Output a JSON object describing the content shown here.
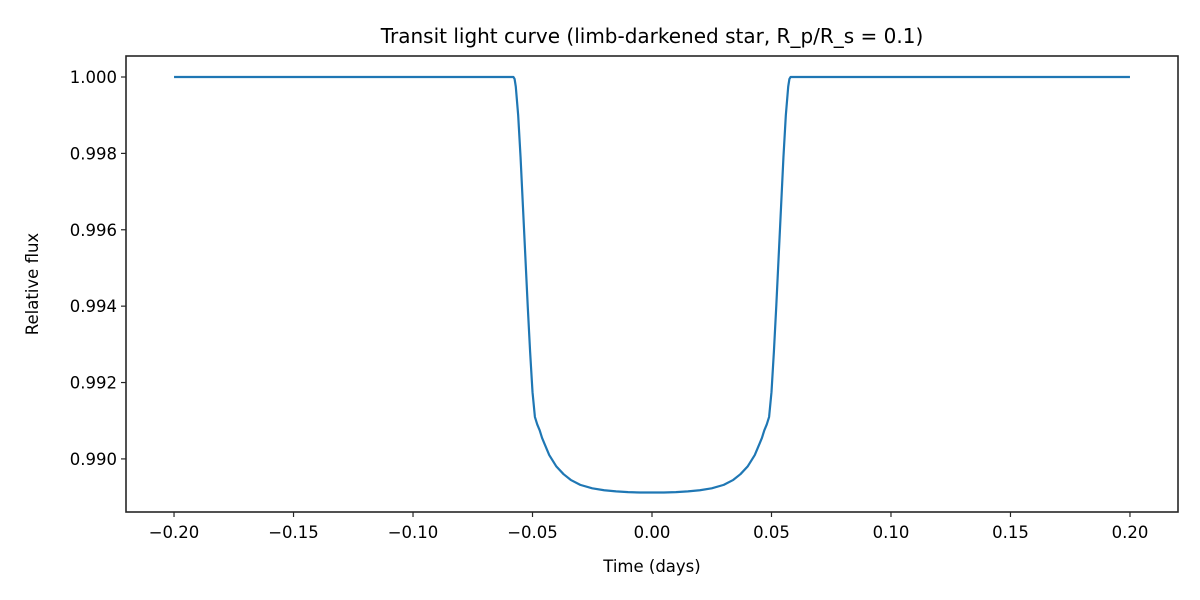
{
  "figure": {
    "background": "#ffffff",
    "line_color": "#1f77b4",
    "spine_color": "#262626"
  },
  "chart_data": {
    "type": "line",
    "title": "Transit light curve (limb-darkened star, R_p/R_s = 0.1)",
    "xlabel": "Time (days)",
    "ylabel": "Relative flux",
    "xlim": [
      -0.2201,
      0.2201
    ],
    "ylim": [
      0.98861,
      1.00055
    ],
    "grid": false,
    "legend": null,
    "xticks": [
      -0.2,
      -0.15,
      -0.1,
      -0.05,
      0.0,
      0.05,
      0.1,
      0.15,
      0.2
    ],
    "xtick_labels": [
      "−0.20",
      "−0.15",
      "−0.10",
      "−0.05",
      "0.00",
      "0.05",
      "0.10",
      "0.15",
      "0.20"
    ],
    "yticks": [
      0.99,
      0.992,
      0.994,
      0.996,
      0.998,
      1.0
    ],
    "ytick_labels": [
      "0.990",
      "0.992",
      "0.994",
      "0.996",
      "0.998",
      "1.000"
    ],
    "series": [
      {
        "name": "flux",
        "x": [
          -0.2,
          -0.058,
          -0.0575,
          -0.057,
          -0.056,
          -0.055,
          -0.054,
          -0.053,
          -0.052,
          -0.051,
          -0.05,
          -0.049,
          -0.048,
          -0.047,
          -0.046,
          -0.045,
          -0.043,
          -0.04,
          -0.037,
          -0.034,
          -0.03,
          -0.025,
          -0.02,
          -0.015,
          -0.01,
          -0.005,
          0.0,
          0.005,
          0.01,
          0.015,
          0.02,
          0.025,
          0.03,
          0.034,
          0.037,
          0.04,
          0.043,
          0.045,
          0.046,
          0.047,
          0.048,
          0.049,
          0.05,
          0.051,
          0.052,
          0.053,
          0.054,
          0.055,
          0.056,
          0.057,
          0.0575,
          0.058,
          0.2
        ],
        "y": [
          1.0,
          1.0,
          0.99995,
          0.99975,
          0.999,
          0.9979,
          0.9966,
          0.9953,
          0.994,
          0.9928,
          0.99175,
          0.9911,
          0.9909,
          0.99075,
          0.99055,
          0.9904,
          0.9901,
          0.9898,
          0.9896,
          0.98945,
          0.98932,
          0.98923,
          0.98918,
          0.98915,
          0.98913,
          0.98912,
          0.98912,
          0.98912,
          0.98913,
          0.98915,
          0.98918,
          0.98923,
          0.98932,
          0.98945,
          0.9896,
          0.9898,
          0.9901,
          0.9904,
          0.99055,
          0.99075,
          0.9909,
          0.9911,
          0.99175,
          0.9928,
          0.994,
          0.9953,
          0.9966,
          0.9979,
          0.999,
          0.99975,
          0.99995,
          1.0,
          1.0
        ]
      }
    ],
    "annotations": []
  }
}
